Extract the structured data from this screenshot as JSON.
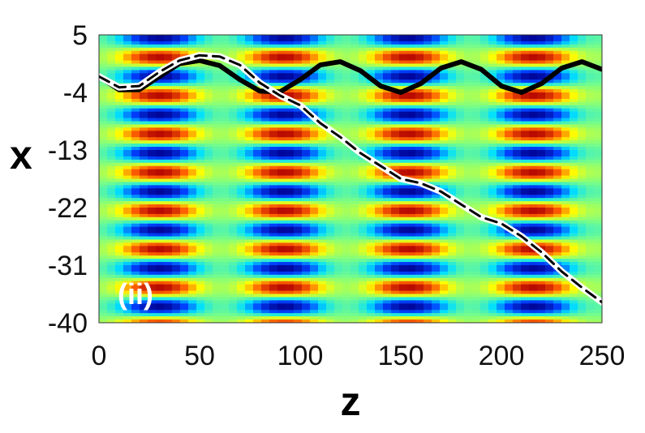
{
  "chart_data": {
    "type": "line",
    "title": "",
    "xlabel": "z",
    "ylabel": "x",
    "panel_label": "(ii)",
    "xlim": [
      0,
      250
    ],
    "ylim": [
      -40,
      5
    ],
    "x_ticks": [
      0,
      50,
      100,
      150,
      200,
      250
    ],
    "y_ticks": [
      5,
      -4,
      -13,
      -22,
      -31,
      -40
    ],
    "background": {
      "type": "heatmap",
      "description_free": true,
      "colormap": [
        "#00008f",
        "#0040ff",
        "#00e0ff",
        "#80ff80",
        "#ffff00",
        "#ff6000",
        "#b00000"
      ],
      "x_period": 62,
      "y_period": 6
    },
    "series": [
      {
        "style": "solid",
        "color": "#000000",
        "x": [
          0,
          10,
          20,
          30,
          40,
          50,
          60,
          70,
          80,
          90,
          100,
          110,
          120,
          130,
          140,
          150,
          160,
          170,
          180,
          190,
          200,
          210,
          220,
          230,
          240,
          250
        ],
        "y": [
          -1.5,
          -3.6,
          -3.6,
          -1.5,
          0.5,
          1.0,
          0.2,
          -2.0,
          -3.8,
          -3.9,
          -2.0,
          0.3,
          0.8,
          -0.6,
          -3.0,
          -4.0,
          -2.6,
          -0.2,
          0.8,
          -0.4,
          -3.0,
          -4.0,
          -2.6,
          -0.2,
          0.8,
          -0.4
        ]
      },
      {
        "style": "dashed",
        "color": "#000000",
        "outline": "#ffffff",
        "x": [
          0,
          10,
          20,
          30,
          40,
          50,
          60,
          70,
          80,
          90,
          100,
          110,
          120,
          130,
          140,
          150,
          160,
          170,
          180,
          190,
          200,
          210,
          220,
          230,
          240,
          250
        ],
        "y": [
          -1.5,
          -3.2,
          -3.0,
          -0.8,
          1.0,
          1.8,
          1.6,
          0.3,
          -2.5,
          -4.5,
          -6.0,
          -8.8,
          -11.0,
          -13.5,
          -15.5,
          -17.5,
          -18.2,
          -19.5,
          -21.5,
          -23.5,
          -24.5,
          -26.5,
          -29.0,
          -32.0,
          -34.5,
          -36.8
        ]
      }
    ]
  }
}
